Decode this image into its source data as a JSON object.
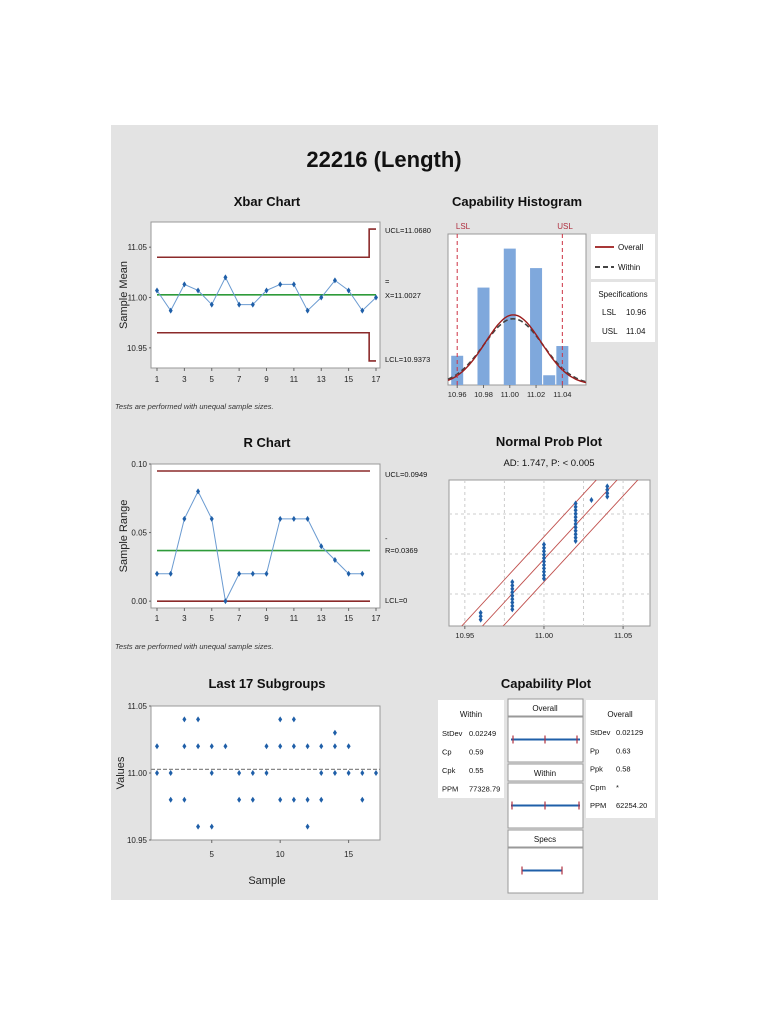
{
  "title": "22216 (Length)",
  "footnote": "Tests are performed with unequal sample sizes.",
  "colors": {
    "panel_bg": "#e3e3e3",
    "plot_bg": "#ffffff",
    "data_blue": "#1f5fa8",
    "line_blue": "#6b9bd1",
    "control_red": "#8b2a2a",
    "center_green": "#2e9b3a",
    "bar_blue": "#7fa8dc",
    "spec_red": "#cc3344"
  },
  "chart_data": [
    {
      "id": "xbar",
      "type": "line",
      "title": "Xbar Chart",
      "xlabel": "",
      "ylabel": "Sample Mean",
      "x": [
        1,
        2,
        3,
        4,
        5,
        6,
        7,
        8,
        9,
        10,
        11,
        12,
        13,
        14,
        15,
        16,
        17
      ],
      "xticks": [
        "1",
        "3",
        "5",
        "7",
        "9",
        "11",
        "13",
        "15",
        "17"
      ],
      "yticks": [
        "10.95",
        "11.00",
        "11.05"
      ],
      "ylim": [
        10.93,
        11.075
      ],
      "values": [
        11.007,
        10.987,
        11.013,
        11.007,
        10.993,
        11.02,
        10.993,
        10.993,
        11.007,
        11.013,
        11.013,
        10.987,
        11.0,
        11.017,
        11.007,
        10.987,
        11.0
      ],
      "ucl_steps": [
        11.04,
        11.068
      ],
      "lcl_steps": [
        10.965,
        10.937
      ],
      "center": 11.0027,
      "labels": {
        "ucl": "UCL=11.0680",
        "center_mark": "=",
        "center": "X=11.0027",
        "lcl": "LCL=10.9373"
      }
    },
    {
      "id": "rchart",
      "type": "line",
      "title": "R Chart",
      "ylabel": "Sample Range",
      "x": [
        1,
        2,
        3,
        4,
        5,
        6,
        7,
        8,
        9,
        10,
        11,
        12,
        13,
        14,
        15,
        16
      ],
      "xticks": [
        "1",
        "3",
        "5",
        "7",
        "9",
        "11",
        "13",
        "15",
        "17"
      ],
      "yticks": [
        "0.00",
        "0.05",
        "0.10"
      ],
      "ylim": [
        -0.005,
        0.1
      ],
      "values": [
        0.02,
        0.02,
        0.06,
        0.08,
        0.06,
        0.0,
        0.02,
        0.02,
        0.02,
        0.06,
        0.06,
        0.06,
        0.04,
        0.03,
        0.02,
        0.02
      ],
      "ucl": 0.0949,
      "center": 0.0369,
      "lcl": 0,
      "labels": {
        "ucl": "UCL=0.0949",
        "center_mark": "-",
        "center": "R=0.0369",
        "lcl": "LCL=0"
      }
    },
    {
      "id": "last17",
      "type": "scatter",
      "title": "Last 17 Subgroups",
      "xlabel": "Sample",
      "ylabel": "Values",
      "xticks": [
        "5",
        "10",
        "15"
      ],
      "yticks": [
        "10.95",
        "11.00",
        "11.05"
      ],
      "ylim": [
        10.95,
        11.05
      ],
      "mean_line": 11.0027,
      "subgroups": [
        [
          11.02,
          11.0
        ],
        [
          11.0,
          10.98
        ],
        [
          11.04,
          11.02,
          10.98
        ],
        [
          11.04,
          11.02,
          10.96
        ],
        [
          11.02,
          11.0,
          10.96
        ],
        [
          11.02
        ],
        [
          11.0,
          10.98
        ],
        [
          11.0,
          10.98
        ],
        [
          11.02,
          11.0
        ],
        [
          11.04,
          11.02,
          10.98
        ],
        [
          11.04,
          11.02,
          10.98
        ],
        [
          11.02,
          10.98,
          10.96
        ],
        [
          11.02,
          11.0,
          10.98
        ],
        [
          11.03,
          11.02,
          11.0
        ],
        [
          11.02,
          11.0
        ],
        [
          11.0,
          10.98
        ],
        [
          11.0
        ]
      ]
    },
    {
      "id": "histogram",
      "type": "bar",
      "title": "Capability Histogram",
      "categories": [
        "10.96",
        "10.98",
        "11.00",
        "11.02",
        "11.03",
        "11.04"
      ],
      "values": [
        3,
        10,
        14,
        12,
        1,
        4
      ],
      "xticks": [
        "10.96",
        "10.98",
        "11.00",
        "11.02",
        "11.04"
      ],
      "spec_labels": {
        "lsl": "LSL",
        "usl": "USL"
      },
      "legend": [
        {
          "label": "Overall",
          "style": "solid"
        },
        {
          "label": "Within",
          "style": "dashed"
        }
      ],
      "specifications": {
        "heading": "Specifications",
        "rows": [
          {
            "k": "LSL",
            "v": "10.96"
          },
          {
            "k": "USL",
            "v": "11.04"
          }
        ]
      }
    },
    {
      "id": "normprob",
      "type": "scatter",
      "title": "Normal Prob Plot",
      "subtitle": "AD: 1.747, P: < 0.005",
      "xticks": [
        "10.95",
        "11.00",
        "11.05"
      ]
    },
    {
      "id": "capplot",
      "type": "table",
      "title": "Capability Plot",
      "within": {
        "heading": "Within",
        "rows": [
          {
            "k": "StDev",
            "v": "0.02249"
          },
          {
            "k": "Cp",
            "v": "0.59"
          },
          {
            "k": "Cpk",
            "v": "0.55"
          },
          {
            "k": "PPM",
            "v": "77328.79"
          }
        ]
      },
      "overall": {
        "heading": "Overall",
        "rows": [
          {
            "k": "StDev",
            "v": "0.02129"
          },
          {
            "k": "Pp",
            "v": "0.63"
          },
          {
            "k": "Ppk",
            "v": "0.58"
          },
          {
            "k": "Cpm",
            "v": "*"
          },
          {
            "k": "PPM",
            "v": "62254.20"
          }
        ]
      },
      "intervals": [
        {
          "label": "Overall"
        },
        {
          "label": "Within"
        },
        {
          "label": "Specs"
        }
      ]
    }
  ]
}
